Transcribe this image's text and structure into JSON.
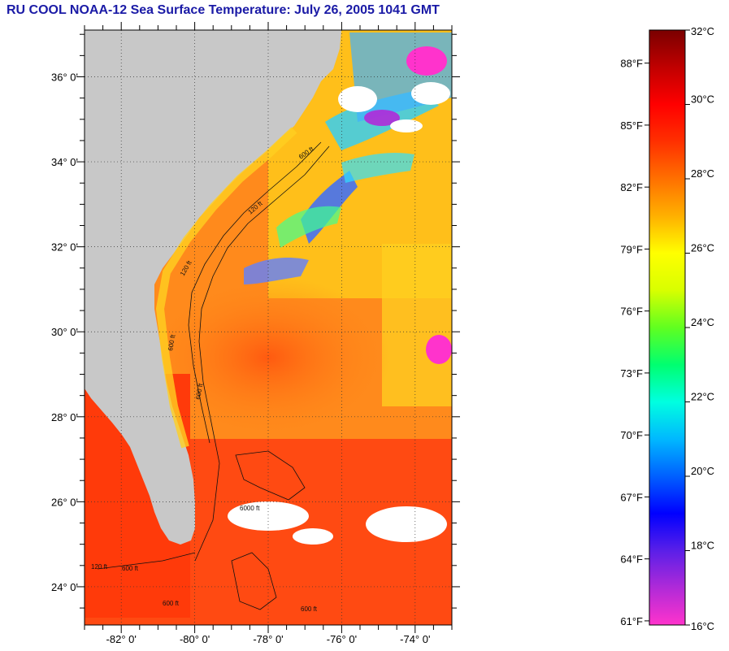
{
  "title": "RU COOL  NOAA-12  Sea Surface Temperature:  July 26, 2005 1041 GMT",
  "map": {
    "lat_labels": [
      {
        "value": 36,
        "text": "36° 0'"
      },
      {
        "value": 34,
        "text": "34° 0'"
      },
      {
        "value": 32,
        "text": "32° 0'"
      },
      {
        "value": 30,
        "text": "30° 0'"
      },
      {
        "value": 28,
        "text": "28° 0'"
      },
      {
        "value": 26,
        "text": "26° 0'"
      },
      {
        "value": 24,
        "text": "24° 0'"
      }
    ],
    "lon_labels": [
      {
        "value": -82,
        "text": "-82° 0'"
      },
      {
        "value": -80,
        "text": "-80° 0'"
      },
      {
        "value": -78,
        "text": "-78° 0'"
      },
      {
        "value": -76,
        "text": "-76° 0'"
      },
      {
        "value": -74,
        "text": "-74° 0'"
      }
    ],
    "contour_labels": [
      "120 ft",
      "600 ft",
      "600 ft",
      "120 ft",
      "600 ft",
      "6000 ft",
      "600 ft",
      "120 ft",
      "600 ft",
      "600 ft"
    ],
    "colors": {
      "land": "#c8c8c8",
      "ocean_warm": "#ff7a10",
      "ocean_hot": "#ff3a10",
      "cloud": "#ffffff",
      "cool_water": "#3a6cff"
    }
  },
  "legend": {
    "celsius": [
      {
        "value": 32,
        "text": "32°C"
      },
      {
        "value": 30,
        "text": "30°C"
      },
      {
        "value": 28,
        "text": "28°C"
      },
      {
        "value": 26,
        "text": "26°C"
      },
      {
        "value": 24,
        "text": "24°C"
      },
      {
        "value": 22,
        "text": "22°C"
      },
      {
        "value": 20,
        "text": "20°C"
      },
      {
        "value": 18,
        "text": "18°C"
      },
      {
        "value": 16,
        "text": "16°C"
      }
    ],
    "fahrenheit": [
      {
        "value": 88,
        "text": "88°F"
      },
      {
        "value": 85,
        "text": "85°F"
      },
      {
        "value": 82,
        "text": "82°F"
      },
      {
        "value": 79,
        "text": "79°F"
      },
      {
        "value": 76,
        "text": "76°F"
      },
      {
        "value": 73,
        "text": "73°F"
      },
      {
        "value": 70,
        "text": "70°F"
      },
      {
        "value": 67,
        "text": "67°F"
      },
      {
        "value": 64,
        "text": "64°F"
      },
      {
        "value": 61,
        "text": "61°F"
      }
    ],
    "gradient": [
      "#ff33cc",
      "#b02ad8",
      "#5a1fe8",
      "#0000ff",
      "#0060ff",
      "#00b8ff",
      "#00ffe0",
      "#00ff70",
      "#60ff20",
      "#d8ff00",
      "#ffff00",
      "#ffb000",
      "#ff7000",
      "#ff3000",
      "#ff0000",
      "#c00000",
      "#7a0000"
    ]
  }
}
